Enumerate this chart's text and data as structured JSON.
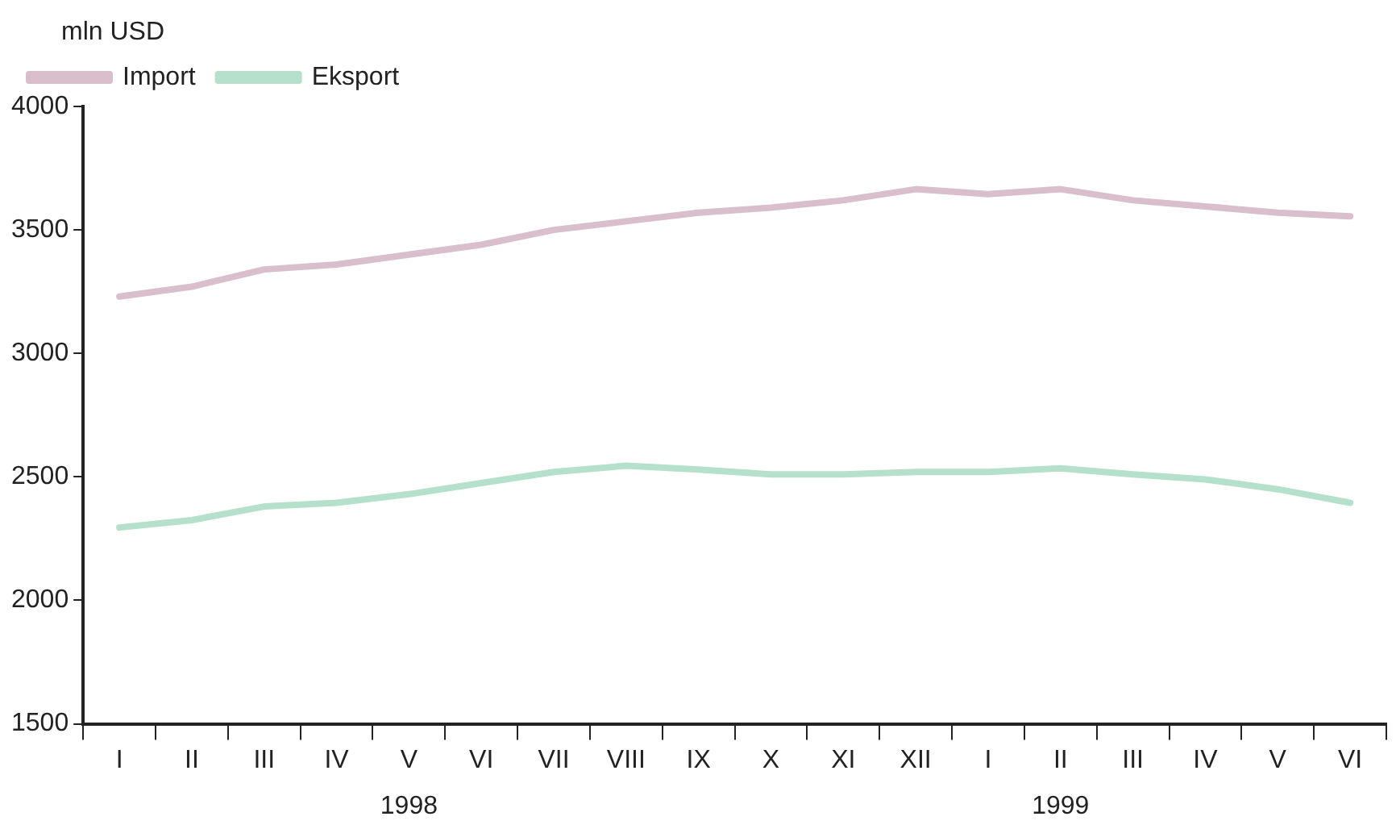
{
  "chart_data": {
    "type": "line",
    "ylabel": "mln USD",
    "categories": [
      "I",
      "II",
      "III",
      "IV",
      "V",
      "VI",
      "VII",
      "VIII",
      "IX",
      "X",
      "XI",
      "XII",
      "I",
      "II",
      "III",
      "IV",
      "V",
      "VI"
    ],
    "series": [
      {
        "name": "Import",
        "color": "#d8bfcb",
        "values": [
          3230,
          3270,
          3340,
          3360,
          3400,
          3440,
          3500,
          3535,
          3570,
          3590,
          3620,
          3665,
          3645,
          3665,
          3620,
          3595,
          3570,
          3555
        ]
      },
      {
        "name": "Eksport",
        "color": "#b5e0cc",
        "values": [
          2295,
          2325,
          2380,
          2395,
          2430,
          2475,
          2520,
          2545,
          2530,
          2510,
          2510,
          2520,
          2520,
          2535,
          2510,
          2490,
          2450,
          2395
        ]
      }
    ],
    "ylim": [
      1500,
      4000
    ],
    "yticks": [
      1500,
      2000,
      2500,
      3000,
      3500,
      4000
    ],
    "grid": false,
    "legend": "top left",
    "marker": "none",
    "line_style": "solid",
    "annotations": [
      "1998",
      "1999"
    ]
  }
}
